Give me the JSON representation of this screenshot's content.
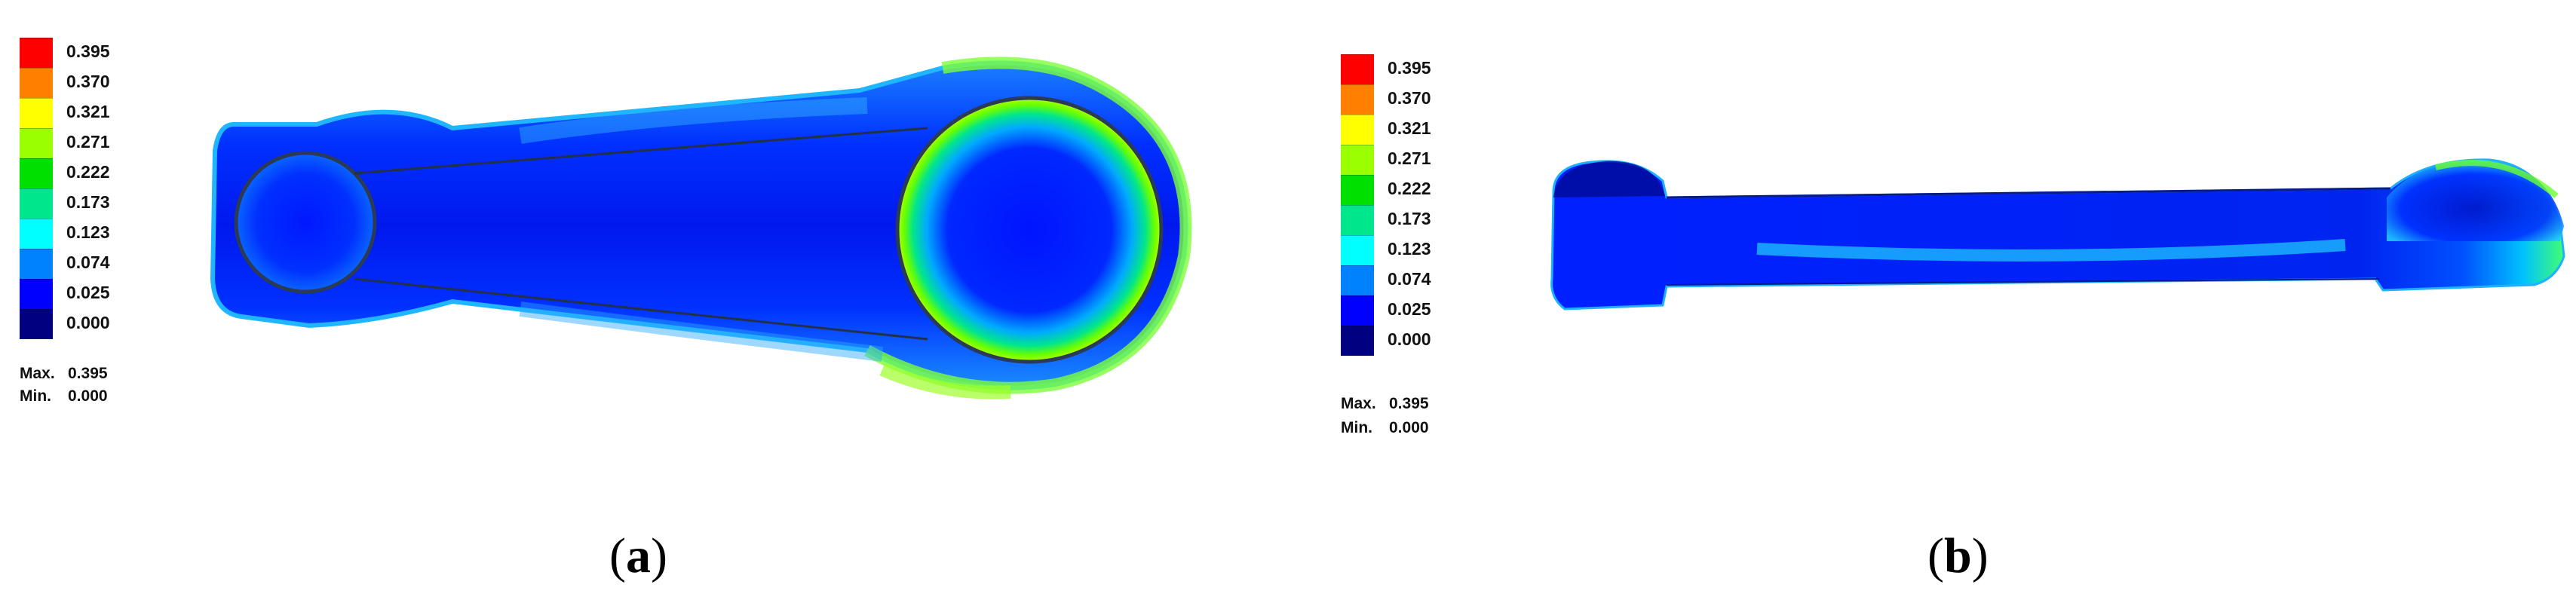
{
  "colorbar": {
    "levels": [
      {
        "value": "0.395",
        "color": "#ff0000"
      },
      {
        "value": "0.370",
        "color": "#ff7f00"
      },
      {
        "value": "0.321",
        "color": "#ffff00"
      },
      {
        "value": "0.271",
        "color": "#9aff00"
      },
      {
        "value": "0.222",
        "color": "#00e000"
      },
      {
        "value": "0.173",
        "color": "#00e68c"
      },
      {
        "value": "0.123",
        "color": "#00ffff"
      },
      {
        "value": "0.074",
        "color": "#0082ff"
      },
      {
        "value": "0.025",
        "color": "#0000ff"
      },
      {
        "value": "0.000",
        "color": "#000080"
      }
    ],
    "max_label": "Max.",
    "max_value": "0.395",
    "min_label": "Min.",
    "min_value": "0.000"
  },
  "panels": [
    {
      "caption_open": "(",
      "caption_letter": "a",
      "caption_close": ")"
    },
    {
      "caption_open": "(",
      "caption_letter": "b",
      "caption_close": ")"
    }
  ]
}
